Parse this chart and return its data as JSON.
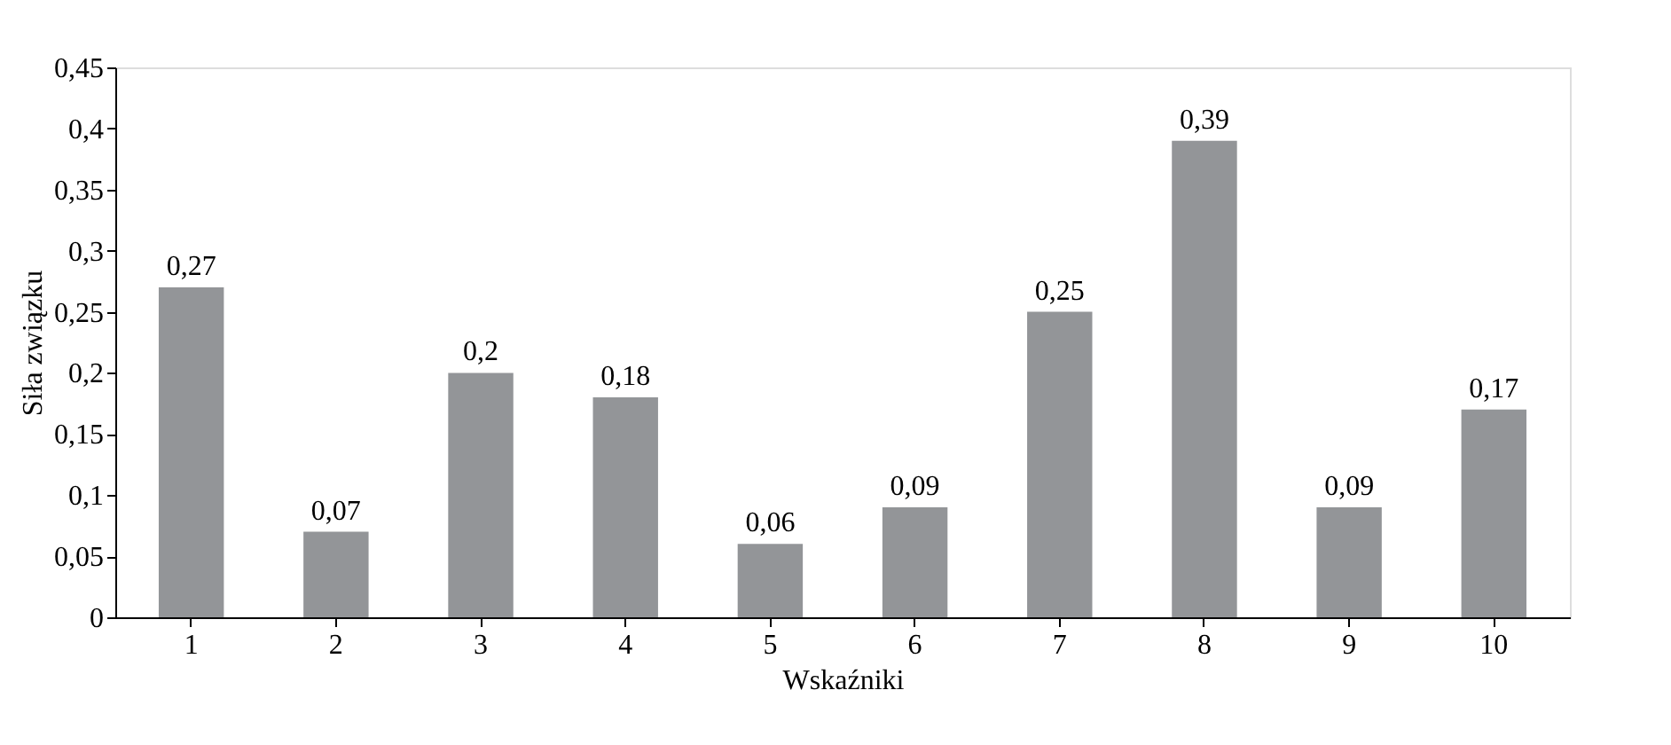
{
  "chart_data": {
    "type": "bar",
    "xlabel": "Wskaźniki",
    "ylabel": "Siła związku",
    "categories": [
      "1",
      "2",
      "3",
      "4",
      "5",
      "6",
      "7",
      "8",
      "9",
      "10"
    ],
    "values": [
      0.27,
      0.07,
      0.2,
      0.18,
      0.06,
      0.09,
      0.25,
      0.39,
      0.09,
      0.17
    ],
    "value_labels": [
      "0,27",
      "0,07",
      "0,2",
      "0,18",
      "0,06",
      "0,09",
      "0,25",
      "0,39",
      "0,09",
      "0,17"
    ],
    "color": "#939598",
    "ylim": [
      0,
      0.45
    ],
    "yticks": [
      0,
      {
        "value": 0.05,
        "label": "0,05"
      },
      {
        "value": 0.1,
        "label": "0,1"
      },
      {
        "value": 0.15,
        "label": "0,15"
      },
      {
        "value": 0.2,
        "label": "0,2"
      },
      {
        "value": 0.25,
        "label": "0,25"
      },
      {
        "value": 0.3,
        "label": "0,3"
      },
      {
        "value": 0.35,
        "label": "0,35"
      },
      {
        "value": 0.4,
        "label": "0,4"
      },
      {
        "value": 0.45,
        "label": "0,45"
      }
    ],
    "grid": false
  }
}
